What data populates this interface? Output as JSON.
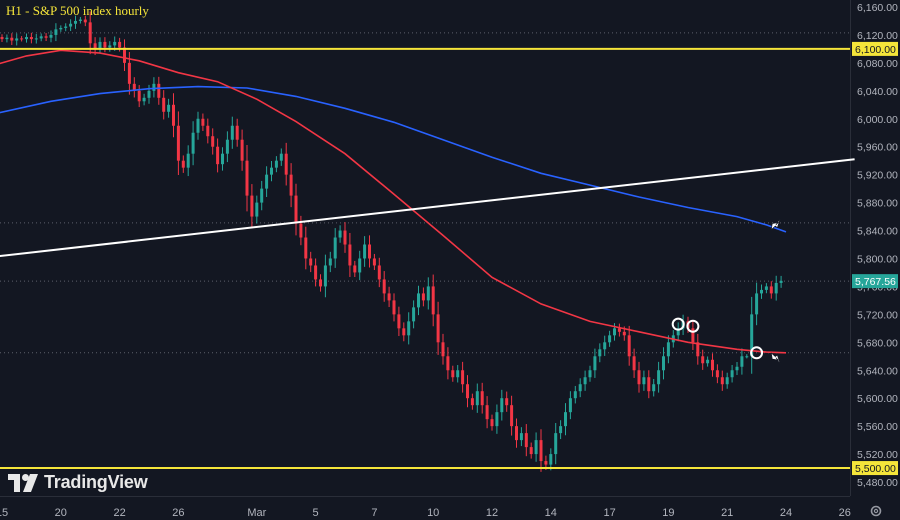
{
  "chart_data": {
    "type": "candlestick",
    "title": "H1 - S&P 500 index hourly",
    "brand": "TradingView",
    "ylim": [
      5460,
      6170
    ],
    "y_ticks": [
      5480,
      5520,
      5560,
      5600,
      5640,
      5680,
      5720,
      5760,
      5800,
      5840,
      5880,
      5920,
      5960,
      6000,
      6040,
      6080,
      6100,
      6120,
      6160
    ],
    "y_tick_labels": [
      "5,480.00",
      "5,520.00",
      "5,560.00",
      "5,600.00",
      "5,640.00",
      "5,680.00",
      "5,720.00",
      "5,760.00",
      "5,800.00",
      "5,840.00",
      "5,880.00",
      "5,920.00",
      "5,960.00",
      "6,000.00",
      "6,040.00",
      "6,080.00",
      "6,100.00",
      "6,120.00",
      "6,160.00"
    ],
    "x_tick_labels": [
      "15",
      "20",
      "22",
      "26",
      "Mar",
      "5",
      "7",
      "10",
      "12",
      "14",
      "17",
      "19",
      "21",
      "24",
      "26"
    ],
    "x_tick_index": [
      0,
      12,
      24,
      36,
      52,
      64,
      76,
      88,
      100,
      112,
      124,
      136,
      148,
      160,
      172
    ],
    "price_label": {
      "value": 5767.56,
      "text": "5,767.56",
      "color": "#26a69a"
    },
    "horizontal_levels": [
      {
        "name": "resistance",
        "value": 6100,
        "text": "6,100.00",
        "color": "#f5e53a"
      },
      {
        "name": "support",
        "value": 5500,
        "text": "5,500.00",
        "color": "#f5e53a"
      }
    ],
    "dotted_levels": [
      6123,
      5851,
      5767.56,
      5665
    ],
    "trendline": {
      "color": "#ffffff",
      "from": {
        "bar_index": -1,
        "value": 5803
      },
      "to": {
        "bar_index": 174,
        "value": 5942
      }
    },
    "moving_averages": [
      {
        "name": "blue-ma",
        "color": "#2962ff",
        "points": [
          [
            -1,
            6008
          ],
          [
            10,
            6025
          ],
          [
            20,
            6036
          ],
          [
            30,
            6043
          ],
          [
            40,
            6046
          ],
          [
            50,
            6044
          ],
          [
            60,
            6032
          ],
          [
            70,
            6015
          ],
          [
            80,
            5995
          ],
          [
            90,
            5970
          ],
          [
            100,
            5945
          ],
          [
            110,
            5922
          ],
          [
            120,
            5905
          ],
          [
            130,
            5888
          ],
          [
            140,
            5873
          ],
          [
            150,
            5860
          ],
          [
            156,
            5848
          ],
          [
            160,
            5838
          ]
        ]
      },
      {
        "name": "red-ma",
        "color": "#f23645",
        "points": [
          [
            -1,
            6078
          ],
          [
            5,
            6090
          ],
          [
            12,
            6098
          ],
          [
            20,
            6094
          ],
          [
            28,
            6083
          ],
          [
            36,
            6066
          ],
          [
            44,
            6053
          ],
          [
            52,
            6028
          ],
          [
            60,
            5996
          ],
          [
            70,
            5950
          ],
          [
            80,
            5892
          ],
          [
            90,
            5833
          ],
          [
            100,
            5773
          ],
          [
            110,
            5735
          ],
          [
            120,
            5710
          ],
          [
            130,
            5695
          ],
          [
            140,
            5680
          ],
          [
            150,
            5670
          ],
          [
            156,
            5666
          ],
          [
            160,
            5665
          ]
        ]
      }
    ],
    "highlight_circles": [
      {
        "bar_index": 138,
        "value": 5706
      },
      {
        "bar_index": 141,
        "value": 5703
      },
      {
        "bar_index": 154,
        "value": 5665
      }
    ],
    "arrows": [
      {
        "name": "blue-ma-arrow",
        "bar_index": 157,
        "value": 5850
      },
      {
        "name": "red-ma-arrow",
        "bar_index": 157,
        "value": 5656
      }
    ],
    "series": {
      "bullish_color": "#26a69a",
      "bearish_color": "#f23645",
      "open": [
        6117,
        6114,
        6116,
        6112,
        6115,
        6114,
        6117,
        6114,
        6115,
        6118,
        6116,
        6120,
        6128,
        6130,
        6132,
        6136,
        6140,
        6142,
        6138,
        6108,
        6100,
        6110,
        6102,
        6105,
        6110,
        6102,
        6080,
        6050,
        6040,
        6025,
        6030,
        6040,
        6050,
        6030,
        6010,
        6020,
        5990,
        5940,
        5930,
        5950,
        5980,
        6000,
        5990,
        5975,
        5960,
        5935,
        5950,
        5970,
        5990,
        5970,
        5940,
        5890,
        5860,
        5880,
        5900,
        5920,
        5930,
        5940,
        5950,
        5920,
        5890,
        5850,
        5830,
        5800,
        5790,
        5770,
        5760,
        5790,
        5800,
        5830,
        5840,
        5820,
        5790,
        5780,
        5800,
        5820,
        5800,
        5790,
        5770,
        5750,
        5740,
        5720,
        5700,
        5690,
        5710,
        5730,
        5750,
        5740,
        5760,
        5720,
        5680,
        5660,
        5640,
        5630,
        5640,
        5620,
        5600,
        5590,
        5610,
        5590,
        5570,
        5560,
        5580,
        5600,
        5590,
        5560,
        5540,
        5550,
        5530,
        5520,
        5540,
        5510,
        5505,
        5520,
        5550,
        5560,
        5580,
        5600,
        5610,
        5620,
        5630,
        5640,
        5660,
        5670,
        5680,
        5690,
        5700,
        5695,
        5690,
        5660,
        5640,
        5620,
        5630,
        5610,
        5620,
        5640,
        5660,
        5680,
        5690,
        5700,
        5710,
        5700,
        5680,
        5660,
        5650,
        5655,
        5640,
        5630,
        5620,
        5630,
        5640,
        5645,
        5660,
        5660,
        5720,
        5750,
        5755,
        5760,
        5750,
        5765
      ],
      "close": [
        6114,
        6116,
        6112,
        6115,
        6114,
        6117,
        6114,
        6115,
        6118,
        6116,
        6120,
        6128,
        6130,
        6132,
        6136,
        6140,
        6142,
        6138,
        6108,
        6100,
        6110,
        6102,
        6105,
        6110,
        6102,
        6080,
        6050,
        6040,
        6025,
        6030,
        6040,
        6050,
        6030,
        6010,
        6020,
        5990,
        5940,
        5930,
        5950,
        5980,
        6000,
        5990,
        5975,
        5960,
        5935,
        5950,
        5970,
        5990,
        5970,
        5940,
        5890,
        5860,
        5880,
        5900,
        5920,
        5930,
        5940,
        5950,
        5920,
        5890,
        5850,
        5830,
        5800,
        5790,
        5770,
        5760,
        5790,
        5800,
        5830,
        5840,
        5820,
        5790,
        5780,
        5800,
        5820,
        5800,
        5790,
        5770,
        5750,
        5740,
        5720,
        5700,
        5690,
        5710,
        5730,
        5750,
        5740,
        5760,
        5720,
        5680,
        5660,
        5640,
        5630,
        5640,
        5620,
        5600,
        5590,
        5610,
        5590,
        5570,
        5560,
        5580,
        5600,
        5590,
        5560,
        5540,
        5550,
        5530,
        5520,
        5540,
        5510,
        5505,
        5520,
        5550,
        5560,
        5580,
        5600,
        5610,
        5620,
        5630,
        5640,
        5660,
        5670,
        5680,
        5690,
        5700,
        5695,
        5690,
        5660,
        5640,
        5620,
        5630,
        5610,
        5620,
        5640,
        5660,
        5680,
        5690,
        5700,
        5710,
        5700,
        5680,
        5660,
        5650,
        5655,
        5640,
        5630,
        5620,
        5630,
        5640,
        5645,
        5660,
        5660,
        5720,
        5750,
        5755,
        5760,
        5750,
        5765,
        5768
      ]
    }
  },
  "icons": {
    "logo": "tradingview-logo-icon",
    "settings": "gear-icon"
  }
}
